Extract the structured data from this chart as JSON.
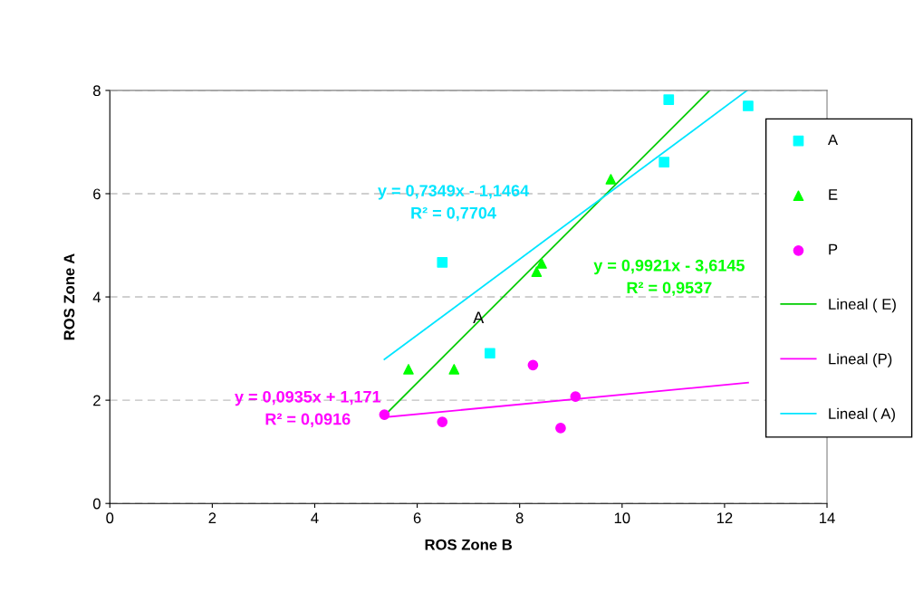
{
  "chart_data": {
    "type": "scatter",
    "xlabel": "ROS Zone B",
    "ylabel": "ROS Zone A",
    "xlim": [
      0,
      14
    ],
    "xticks": [
      0,
      2,
      4,
      6,
      8,
      10,
      12,
      14
    ],
    "ylim": [
      0,
      8
    ],
    "yticks": [
      0,
      2,
      4,
      6,
      8
    ],
    "grid": "y",
    "legend": "right",
    "series": [
      {
        "name": "A",
        "marker": "square",
        "color": "#00ffff",
        "x": [
          6.49,
          7.42,
          10.82,
          10.91,
          12.46
        ],
        "values": [
          4.67,
          2.91,
          6.61,
          7.82,
          7.7
        ]
      },
      {
        "name": "E",
        "marker": "triangle",
        "color": "#00ff00",
        "x": [
          5.83,
          6.72,
          8.33,
          8.43,
          9.78
        ],
        "values": [
          2.6,
          2.6,
          4.49,
          4.65,
          6.28
        ]
      },
      {
        "name": "P",
        "marker": "circle",
        "color": "#ff00ff",
        "x": [
          5.36,
          6.49,
          8.26,
          8.8,
          9.09
        ],
        "values": [
          1.72,
          1.58,
          2.68,
          1.46,
          2.07
        ]
      },
      {
        "name": "Lineal ( E)",
        "type": "line",
        "marker": "none",
        "color": "#00cc00",
        "x": [
          5.36,
          11.71
        ],
        "values": [
          1.7,
          8.0
        ]
      },
      {
        "name": "Lineal (P)",
        "type": "line",
        "marker": "none",
        "color": "#ff00ff",
        "x": [
          5.36,
          12.46
        ],
        "values": [
          1.67,
          2.34
        ]
      },
      {
        "name": "Lineal ( A)",
        "type": "line",
        "marker": "none",
        "color": "#00e5ff",
        "x": [
          5.36,
          12.44
        ],
        "values": [
          2.79,
          8.0
        ]
      }
    ],
    "annotations": [
      "y = 0,7349x - 1,1464\nR² = 0,7704",
      "y = 0,9921x - 3,6145\nR² = 0,9537",
      "y = 0,0935x + 1,171\nR² = 0,0916",
      "A"
    ]
  }
}
